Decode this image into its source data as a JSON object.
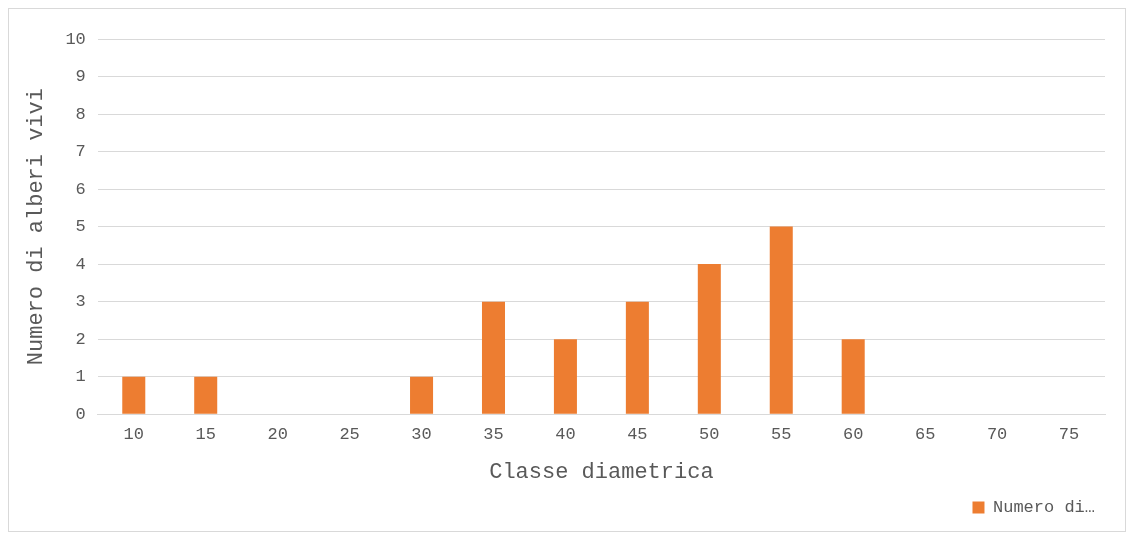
{
  "chart_data": {
    "type": "bar",
    "xlabel": "Classe diametrica",
    "ylabel": "Numero di alberi vivi",
    "categories": [
      "10",
      "15",
      "20",
      "25",
      "30",
      "35",
      "40",
      "45",
      "50",
      "55",
      "60",
      "65",
      "70",
      "75"
    ],
    "series": [
      {
        "name": "Numero di…",
        "color": "#ed7d31",
        "values": [
          1,
          1,
          0,
          0,
          1,
          3,
          2,
          3,
          4,
          5,
          2,
          0,
          0,
          0
        ]
      }
    ],
    "ylim": [
      0,
      10
    ],
    "yticks": [
      0,
      1,
      2,
      3,
      4,
      5,
      6,
      7,
      8,
      9,
      10
    ],
    "grid": "y",
    "legend": "bottom right"
  }
}
